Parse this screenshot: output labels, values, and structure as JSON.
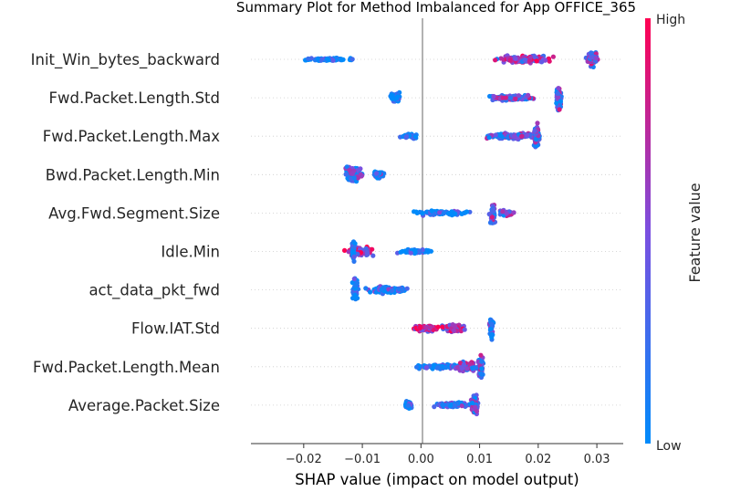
{
  "chart_data": {
    "type": "scatter",
    "title": "Summary Plot for Method Imbalanced for App OFFICE_365",
    "xlabel": "SHAP value (impact on model output)",
    "xlim": [
      -0.029,
      0.0345
    ],
    "xticks": [
      {
        "value": -0.02,
        "label": "−0.02"
      },
      {
        "value": -0.01,
        "label": "−0.01"
      },
      {
        "value": 0.0,
        "label": "0.00"
      },
      {
        "value": 0.01,
        "label": "0.01"
      },
      {
        "value": 0.02,
        "label": "0.02"
      },
      {
        "value": 0.03,
        "label": "0.03"
      }
    ],
    "colorbar": {
      "label": "Feature value",
      "high": "High",
      "low": "Low",
      "high_color": "#ff0052",
      "low_color": "#008bfb"
    },
    "features": [
      {
        "name": "Init_Win_bytes_backward",
        "clusters": [
          {
            "center": -0.0155,
            "spread": 0.0055,
            "height": 4,
            "color": 0.0,
            "count": 70
          },
          {
            "center": 0.018,
            "spread": 0.006,
            "height": 10,
            "color": 0.55,
            "count": 140
          },
          {
            "center": 0.0292,
            "spread": 0.0012,
            "height": 20,
            "color": 0.45,
            "count": 90
          }
        ]
      },
      {
        "name": "Fwd.Packet.Length.Std",
        "clusters": [
          {
            "center": -0.0045,
            "spread": 0.0012,
            "height": 14,
            "color": 0.0,
            "count": 60
          },
          {
            "center": 0.015,
            "spread": 0.0055,
            "height": 8,
            "color": 0.45,
            "count": 110
          },
          {
            "center": 0.0235,
            "spread": 0.0006,
            "height": 32,
            "color": 0.4,
            "count": 90
          }
        ]
      },
      {
        "name": "Fwd.Packet.Length.Max",
        "clusters": [
          {
            "center": -0.002,
            "spread": 0.0018,
            "height": 6,
            "color": 0.0,
            "count": 40
          },
          {
            "center": 0.0155,
            "spread": 0.0065,
            "height": 8,
            "color": 0.35,
            "count": 120
          },
          {
            "center": 0.0198,
            "spread": 0.0006,
            "height": 32,
            "color": 0.45,
            "count": 70
          }
        ]
      },
      {
        "name": "Bwd.Packet.Length.Min",
        "clusters": [
          {
            "center": -0.0115,
            "spread": 0.0018,
            "height": 22,
            "color": 0.25,
            "count": 110
          },
          {
            "center": -0.0072,
            "spread": 0.0012,
            "height": 10,
            "color": 0.3,
            "count": 40
          }
        ]
      },
      {
        "name": "Avg.Fwd.Segment.Size",
        "clusters": [
          {
            "center": 0.004,
            "spread": 0.007,
            "height": 6,
            "color": 0.1,
            "count": 90
          },
          {
            "center": 0.0122,
            "spread": 0.0006,
            "height": 32,
            "color": 0.4,
            "count": 60
          },
          {
            "center": 0.0145,
            "spread": 0.0018,
            "height": 8,
            "color": 0.45,
            "count": 30
          }
        ]
      },
      {
        "name": "Idle.Min",
        "clusters": [
          {
            "center": -0.0105,
            "spread": 0.0028,
            "height": 14,
            "color": 0.7,
            "count": 90
          },
          {
            "center": -0.0115,
            "spread": 0.0004,
            "height": 30,
            "color": 0.05,
            "count": 30
          },
          {
            "center": -0.001,
            "spread": 0.0035,
            "height": 6,
            "color": 0.1,
            "count": 70
          }
        ]
      },
      {
        "name": "act_data_pkt_fwd",
        "clusters": [
          {
            "center": -0.0112,
            "spread": 0.0006,
            "height": 34,
            "color": 0.05,
            "count": 60
          },
          {
            "center": -0.0055,
            "spread": 0.0042,
            "height": 10,
            "color": 0.15,
            "count": 120
          }
        ]
      },
      {
        "name": "Flow.IAT.Std",
        "clusters": [
          {
            "center": 0.0008,
            "spread": 0.0028,
            "height": 8,
            "color": 0.75,
            "count": 100
          },
          {
            "center": 0.0055,
            "spread": 0.0025,
            "height": 12,
            "color": 0.65,
            "count": 90
          },
          {
            "center": 0.012,
            "spread": 0.0005,
            "height": 32,
            "color": 0.2,
            "count": 40
          }
        ]
      },
      {
        "name": "Fwd.Packet.Length.Mean",
        "clusters": [
          {
            "center": 0.003,
            "spread": 0.0055,
            "height": 6,
            "color": 0.1,
            "count": 90
          },
          {
            "center": 0.0078,
            "spread": 0.0025,
            "height": 14,
            "color": 0.45,
            "count": 90
          },
          {
            "center": 0.0102,
            "spread": 0.0006,
            "height": 32,
            "color": 0.4,
            "count": 60
          }
        ]
      },
      {
        "name": "Average.Packet.Size",
        "clusters": [
          {
            "center": -0.0022,
            "spread": 0.0007,
            "height": 10,
            "color": 0.05,
            "count": 40
          },
          {
            "center": 0.0055,
            "spread": 0.004,
            "height": 8,
            "color": 0.25,
            "count": 90
          },
          {
            "center": 0.0092,
            "spread": 0.0008,
            "height": 32,
            "color": 0.4,
            "count": 70
          }
        ]
      }
    ]
  }
}
